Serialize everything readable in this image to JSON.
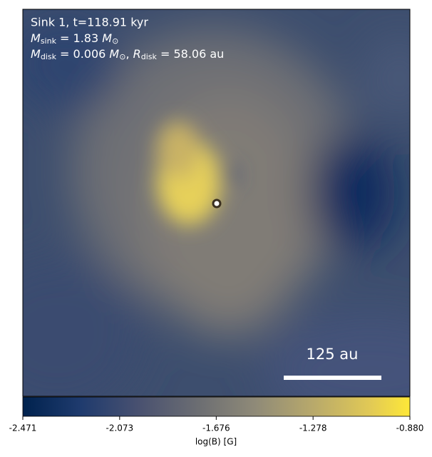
{
  "chart_data": {
    "type": "image",
    "annotations": {
      "line1": "Sink 1, t=118.91 kyr",
      "line2": [
        "M",
        "sink",
        " = 1.83 ",
        "M",
        "⊙"
      ],
      "line3": [
        "M",
        "disk",
        " = 0.006 ",
        "M",
        "⊙",
        ", ",
        "R",
        "disk",
        " = 58.06 au"
      ]
    },
    "scale_bar_label": "125 au",
    "colorbar_label": "log(B) [G]",
    "clim": [
      -2.471,
      {
        "value": -0.88,
        "label": "-0.880"
      }
    ],
    "colorbar_ticks": [
      -2.471,
      -2.073,
      -1.676,
      -1.278,
      {
        "value": -0.88,
        "label": "-0.880"
      }
    ]
  }
}
